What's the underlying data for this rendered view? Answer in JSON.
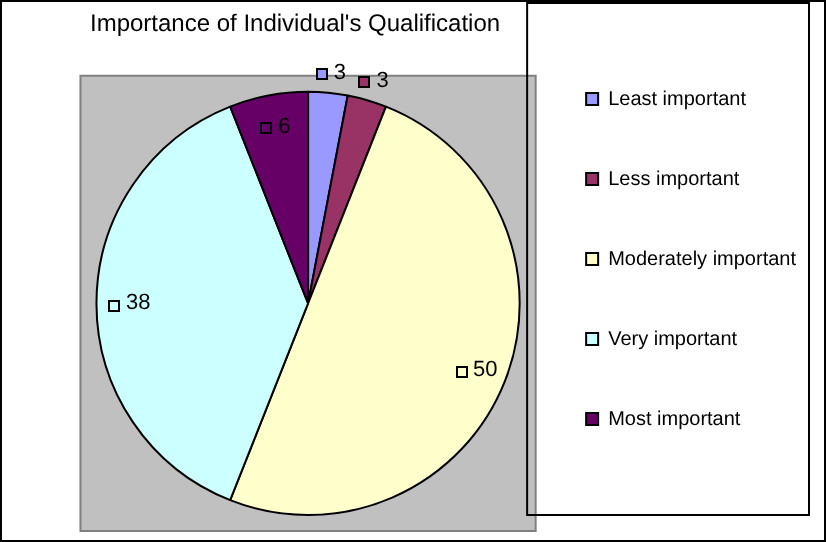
{
  "chart_data": {
    "type": "pie",
    "title": "Importance of Individual's Qualification",
    "categories": [
      "Least important",
      "Less important",
      "Moderately important",
      "Very important",
      "Most important"
    ],
    "values": [
      3,
      3,
      50,
      38,
      6
    ],
    "colors": [
      "#9999ff",
      "#993366",
      "#ffffcc",
      "#ccffff",
      "#660066"
    ],
    "legend": "right",
    "data_labels": true
  }
}
